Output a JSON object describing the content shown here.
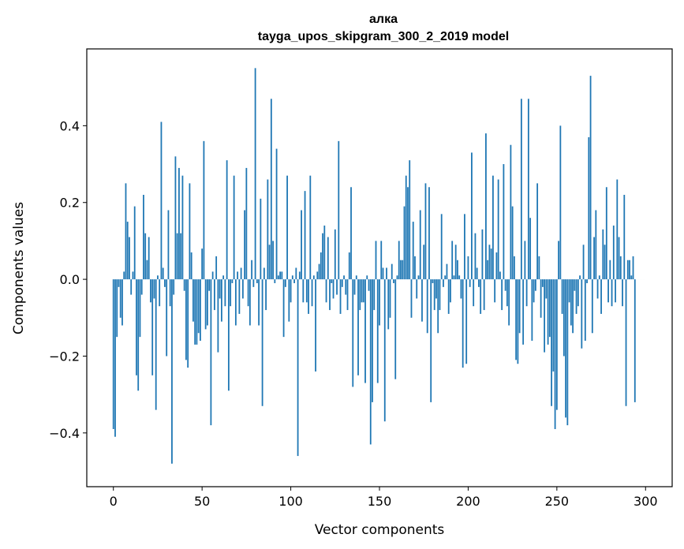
{
  "chart_data": {
    "type": "bar",
    "title": "алка",
    "subtitle": "tayga_upos_skipgram_300_2_2019 model",
    "xlabel": "Vector components",
    "ylabel": "Components values",
    "xlim": [
      -15,
      315
    ],
    "ylim": [
      -0.54,
      0.6
    ],
    "xticks": [
      0,
      50,
      100,
      150,
      200,
      250,
      300
    ],
    "yticks": [
      -0.4,
      -0.2,
      0.0,
      0.2,
      0.4
    ],
    "ytick_labels": [
      "−0.4",
      "−0.2",
      "0.0",
      "0.2",
      "0.4"
    ],
    "grid": false,
    "bar_color": "#1f77b4",
    "values": [
      -0.39,
      -0.41,
      -0.15,
      -0.02,
      -0.1,
      -0.12,
      0.02,
      0.25,
      0.15,
      0.11,
      -0.04,
      0.02,
      0.19,
      -0.25,
      -0.29,
      -0.15,
      -0.04,
      0.22,
      0.12,
      0.05,
      0.11,
      -0.06,
      -0.25,
      -0.05,
      -0.34,
      0.01,
      -0.07,
      0.41,
      0.03,
      -0.02,
      -0.2,
      0.18,
      -0.07,
      -0.48,
      -0.04,
      0.32,
      0.12,
      0.29,
      0.12,
      0.27,
      -0.03,
      -0.21,
      -0.23,
      0.25,
      0.07,
      -0.11,
      -0.17,
      -0.17,
      -0.14,
      -0.16,
      0.08,
      0.36,
      -0.13,
      -0.12,
      -0.03,
      -0.38,
      0.02,
      -0.08,
      0.06,
      -0.19,
      -0.05,
      -0.11,
      0.01,
      -0.07,
      0.31,
      -0.29,
      -0.07,
      -0.01,
      0.27,
      -0.12,
      0.02,
      -0.09,
      0.03,
      -0.05,
      0.18,
      0.29,
      -0.07,
      -0.12,
      0.05,
      -0.02,
      0.55,
      -0.01,
      -0.12,
      0.21,
      -0.33,
      0.03,
      -0.08,
      0.26,
      0.09,
      0.47,
      0.1,
      -0.01,
      0.34,
      0.01,
      0.02,
      0.02,
      -0.15,
      -0.02,
      0.27,
      -0.11,
      -0.06,
      0.01,
      -0.01,
      0.03,
      -0.46,
      0.02,
      0.18,
      -0.06,
      0.23,
      -0.06,
      -0.09,
      0.27,
      -0.07,
      0.01,
      -0.24,
      0.02,
      0.04,
      0.07,
      0.12,
      0.14,
      -0.06,
      0.11,
      -0.08,
      -0.01,
      -0.05,
      0.13,
      -0.04,
      0.36,
      -0.09,
      -0.02,
      0.01,
      -0.04,
      -0.08,
      0.07,
      0.24,
      -0.28,
      -0.04,
      0.01,
      -0.25,
      -0.08,
      -0.06,
      -0.06,
      -0.27,
      0.01,
      -0.03,
      -0.43,
      -0.32,
      -0.08,
      0.1,
      -0.27,
      -0.12,
      0.1,
      0.03,
      -0.37,
      0.03,
      -0.13,
      -0.1,
      0.04,
      -0.01,
      -0.26,
      0.01,
      0.1,
      0.05,
      0.05,
      0.19,
      0.27,
      0.24,
      0.31,
      -0.1,
      0.15,
      0.06,
      -0.05,
      0.01,
      0.18,
      -0.11,
      0.09,
      0.25,
      -0.14,
      0.24,
      -0.32,
      -0.01,
      -0.08,
      -0.05,
      -0.14,
      -0.08,
      0.17,
      -0.02,
      0.01,
      0.04,
      -0.09,
      -0.06,
      0.1,
      0.01,
      0.09,
      0.05,
      0.01,
      -0.05,
      -0.23,
      0.17,
      -0.22,
      0.06,
      -0.02,
      0.33,
      -0.07,
      0.12,
      0.03,
      -0.02,
      -0.09,
      0.13,
      -0.08,
      0.38,
      0.05,
      0.09,
      0.08,
      0.27,
      -0.06,
      0.07,
      0.26,
      0.02,
      -0.08,
      0.3,
      -0.03,
      -0.07,
      -0.12,
      0.35,
      0.19,
      0.06,
      -0.21,
      -0.22,
      -0.14,
      0.47,
      -0.17,
      0.1,
      -0.07,
      0.47,
      0.16,
      -0.16,
      -0.06,
      -0.03,
      0.25,
      0.06,
      -0.1,
      -0.02,
      -0.19,
      -0.05,
      -0.17,
      -0.15,
      -0.33,
      -0.24,
      -0.39,
      -0.34,
      0.1,
      0.4,
      -0.09,
      -0.2,
      -0.36,
      -0.38,
      -0.06,
      -0.12,
      -0.14,
      -0.03,
      -0.09,
      -0.07,
      0.01,
      -0.18,
      0.09,
      -0.16,
      -0.01,
      0.37,
      0.53,
      -0.14,
      0.11,
      0.18,
      -0.05,
      0.01,
      -0.09,
      0.13,
      0.09,
      0.24,
      -0.06,
      0.05,
      -0.07,
      0.14,
      -0.06,
      0.26,
      0.11,
      0.06,
      -0.07,
      0.22,
      -0.33,
      0.05,
      0.05,
      0.01,
      0.06,
      -0.32,
      0.0,
      0.0,
      0.0,
      0.0,
      0.0
    ]
  }
}
